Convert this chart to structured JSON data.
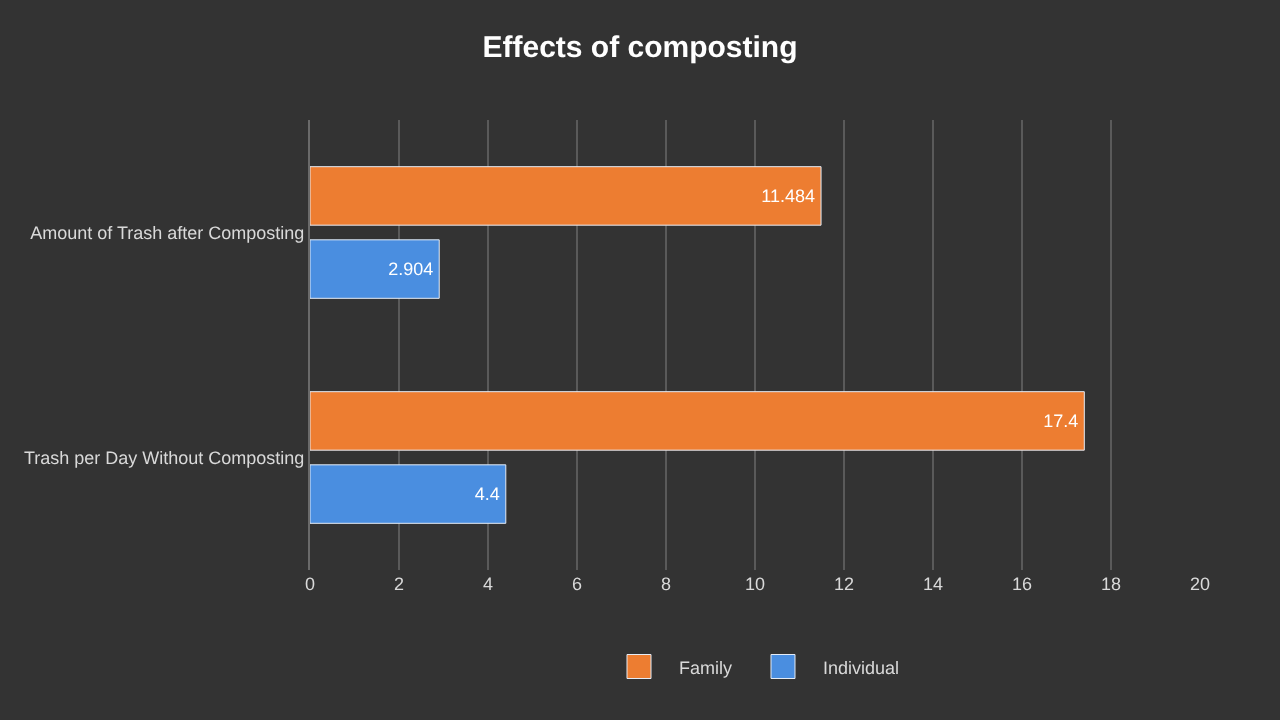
{
  "chart_data": {
    "type": "bar",
    "orientation": "horizontal",
    "title": "Effects of composting",
    "categories": [
      "Amount of Trash after Composting",
      "Trash per Day Without Composting"
    ],
    "series": [
      {
        "name": "Family",
        "color": "#ed7d31",
        "values": [
          11.484,
          17.4
        ]
      },
      {
        "name": "Individual",
        "color": "#4a8ee0",
        "values": [
          2.904,
          4.4
        ]
      }
    ],
    "xlim": [
      0,
      20
    ],
    "xticks": [
      0,
      2,
      4,
      6,
      8,
      10,
      12,
      14,
      16,
      18,
      20
    ],
    "grid": "x",
    "legend": "bottom",
    "data_labels": true
  }
}
